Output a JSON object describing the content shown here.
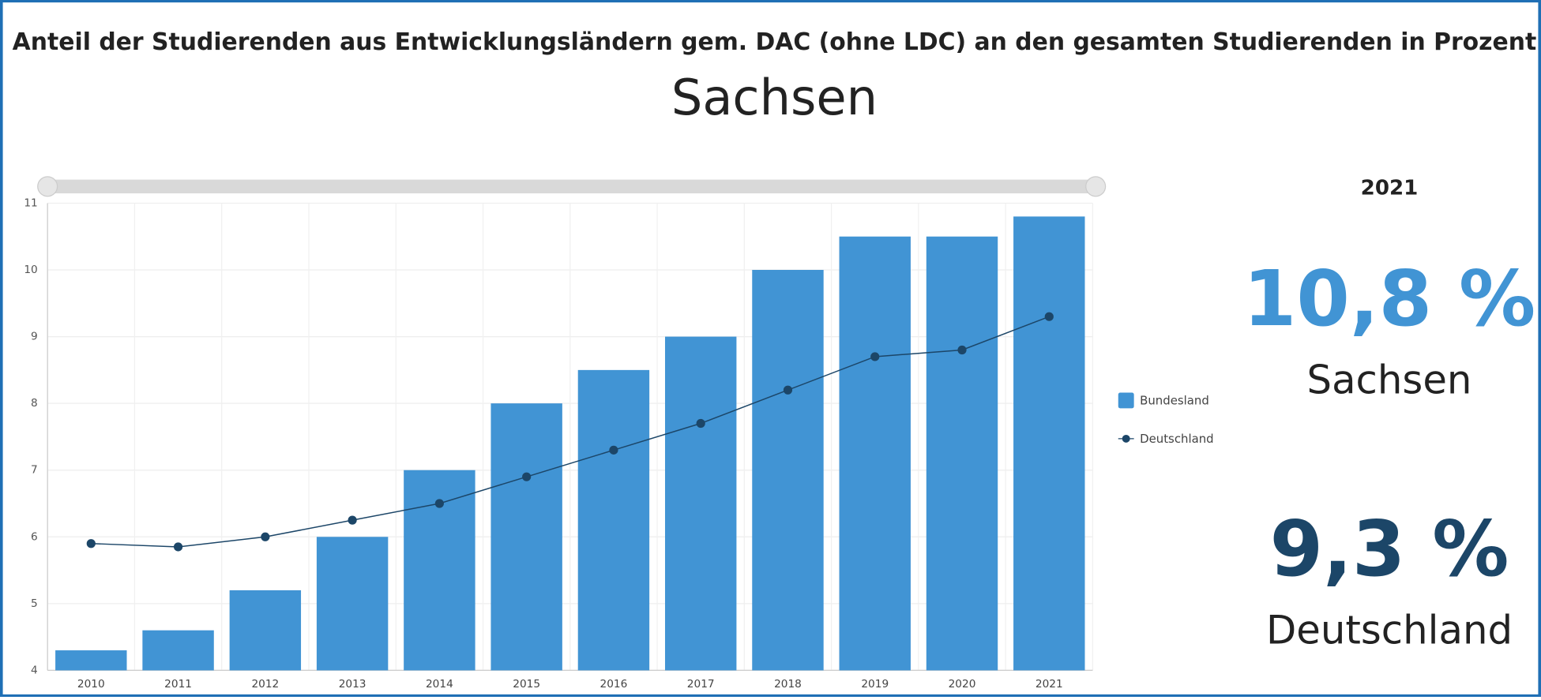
{
  "chart_data": {
    "type": "bar",
    "title": "Anteil der Studierenden aus Entwicklungsländern gem. DAC (ohne LDC) an den gesamten Studierenden in Prozent",
    "subtitle": "Sachsen",
    "categories": [
      "2010",
      "2011",
      "2012",
      "2013",
      "2014",
      "2015",
      "2016",
      "2017",
      "2018",
      "2019",
      "2020",
      "2021"
    ],
    "series": [
      {
        "name": "Bundesland",
        "type": "bar",
        "color": "#4194d4",
        "values": [
          4.3,
          4.6,
          5.2,
          6.0,
          7.0,
          8.0,
          8.5,
          9.0,
          10.0,
          10.5,
          10.5,
          10.8
        ]
      },
      {
        "name": "Deutschland",
        "type": "line",
        "color": "#1c4668",
        "values": [
          5.9,
          5.85,
          6.0,
          6.25,
          6.5,
          6.9,
          7.3,
          7.7,
          8.2,
          8.7,
          8.8,
          9.3
        ]
      }
    ],
    "ylim": [
      4,
      11
    ],
    "yticks": [
      4,
      5,
      6,
      7,
      8,
      9,
      10,
      11
    ],
    "grid": true,
    "legend": "right"
  },
  "panel": {
    "year": "2021",
    "items": [
      {
        "label": "10,8 %",
        "name": "Sachsen",
        "color": "#4194d4"
      },
      {
        "label": "9,3 %",
        "name": "Deutschland",
        "color": "#1c4668"
      }
    ]
  }
}
